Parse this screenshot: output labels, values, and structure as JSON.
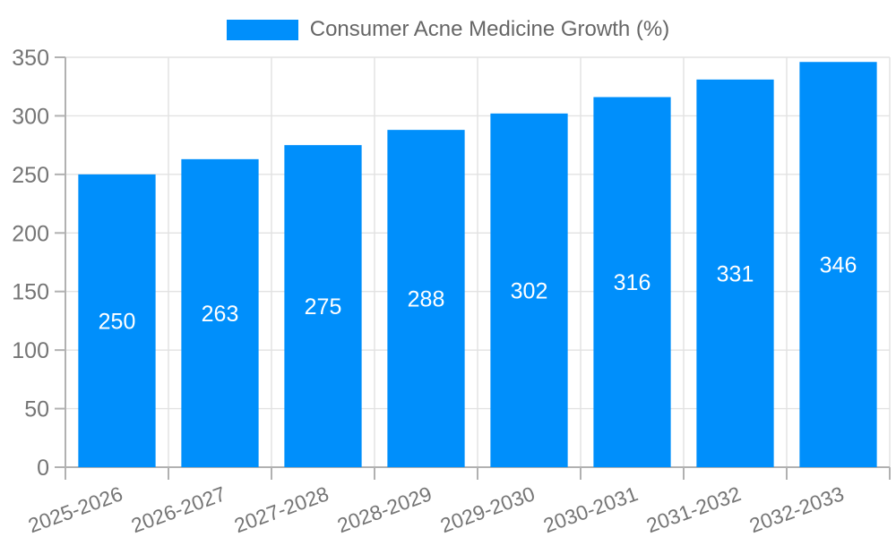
{
  "legend": {
    "label": "Consumer Acne Medicine Growth (%)"
  },
  "colors": {
    "bar": "#008FFB",
    "grid": "#e2e2e2",
    "axis": "#b1b1b1",
    "axis_label": "#757575",
    "value_label": "#ffffff",
    "legend_text": "#666666",
    "background": "#ffffff"
  },
  "chart_data": {
    "type": "bar",
    "title": "Consumer Acne Medicine Growth (%)",
    "categories": [
      "2025-2026",
      "2026-2027",
      "2027-2028",
      "2028-2029",
      "2029-2030",
      "2030-2031",
      "2031-2032",
      "2032-2033"
    ],
    "values": [
      250,
      263,
      275,
      288,
      302,
      316,
      331,
      346
    ],
    "xlabel": "",
    "ylabel": "",
    "ylim": [
      0,
      350
    ],
    "yticks": [
      0,
      50,
      100,
      150,
      200,
      250,
      300,
      350
    ],
    "grid": true,
    "legend_position": "top",
    "value_labels": "inside-center",
    "xtick_rotation_deg": -20
  }
}
